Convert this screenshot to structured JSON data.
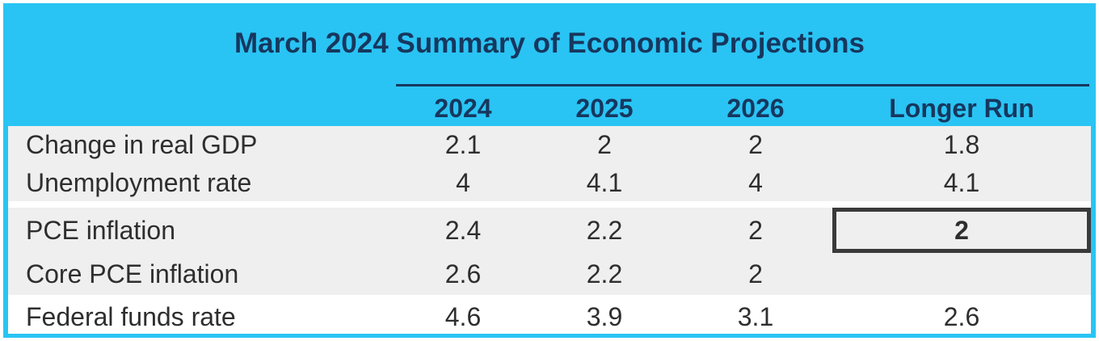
{
  "title": "March 2024 Summary of Economic Projections",
  "columns": [
    "2024",
    "2025",
    "2026",
    "Longer Run"
  ],
  "rows": [
    {
      "label": "Change in real GDP",
      "values": [
        "2.1",
        "2",
        "2",
        "1.8"
      ]
    },
    {
      "label": "Unemployment rate",
      "values": [
        "4",
        "4.1",
        "4",
        "4.1"
      ]
    },
    {
      "label": "PCE inflation",
      "values": [
        "2.4",
        "2.2",
        "2",
        "2"
      ],
      "highlighted_column": "Longer Run"
    },
    {
      "label": "Core PCE inflation",
      "values": [
        "2.6",
        "2.2",
        "2",
        ""
      ]
    },
    {
      "label": "Federal funds rate",
      "values": [
        "4.6",
        "3.9",
        "3.1",
        "2.6"
      ]
    }
  ],
  "colors": {
    "frame_cyan": "#29C4F4",
    "title_navy": "#17375E",
    "row_band_gray": "#EFEFEF",
    "body_text": "#2E2E2E",
    "highlight_border": "#3A3A3A"
  },
  "chart_data": {
    "type": "table",
    "title": "March 2024 Summary of Economic Projections",
    "columns": [
      "2024",
      "2025",
      "2026",
      "Longer Run"
    ],
    "rows": [
      {
        "label": "Change in real GDP",
        "values": [
          2.1,
          2,
          2,
          1.8
        ]
      },
      {
        "label": "Unemployment rate",
        "values": [
          4,
          4.1,
          4,
          4.1
        ]
      },
      {
        "label": "PCE inflation",
        "values": [
          2.4,
          2.2,
          2,
          2
        ],
        "annotation": "Longer Run value boxed/highlighted in bold"
      },
      {
        "label": "Core PCE inflation",
        "values": [
          2.6,
          2.2,
          2,
          null
        ]
      },
      {
        "label": "Federal funds rate",
        "values": [
          4.6,
          3.9,
          3.1,
          2.6
        ]
      }
    ],
    "layout": {
      "row_groups": [
        [
          "Change in real GDP",
          "Unemployment rate"
        ],
        [
          "PCE inflation",
          "Core PCE inflation"
        ],
        [
          "Federal funds rate"
        ]
      ],
      "header_background": "cyan",
      "banding": "light-gray"
    }
  }
}
